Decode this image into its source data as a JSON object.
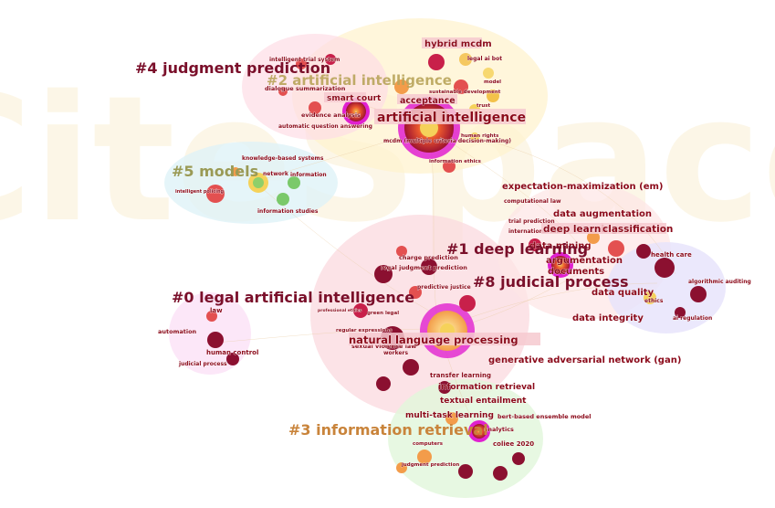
{
  "watermark": "CiteSpace",
  "colors": {
    "c0": "#fbdde3",
    "c1": "#fbe3e6",
    "c2": "#fff5d6",
    "c3": "#e4f7e0",
    "c4": "#fde3ea",
    "c5": "#e0f4f7",
    "c7": "#e8e3fb",
    "c8": "#fbe3f7",
    "label_dark": "#7a0f2a",
    "label_olive": "#9a9a55",
    "label_orange": "#c9843b",
    "node_dark": "#8b1030",
    "node_red": "#e35050",
    "node_orange": "#f39c4a",
    "node_yellow": "#f5d25a",
    "node_green": "#7ac96a",
    "ring": "#e020d0"
  },
  "clusters": [
    {
      "id": "0",
      "label": "#0 legal artificial intelligence"
    },
    {
      "id": "1",
      "label": "#1 deep learning"
    },
    {
      "id": "2",
      "label": "#2 artificial intelligence"
    },
    {
      "id": "3",
      "label": "#3 information retrieval"
    },
    {
      "id": "4",
      "label": "#4 judgment prediction"
    },
    {
      "id": "5",
      "label": "#5 models"
    },
    {
      "id": "7",
      "label": "#7 algorithmic auditing"
    },
    {
      "id": "8",
      "label": "#8 judicial process"
    }
  ],
  "keywords": [
    {
      "text": "hybrid mcdm"
    },
    {
      "text": "legal ai bot"
    },
    {
      "text": "intelligent trial system"
    },
    {
      "text": "dialogue summarization"
    },
    {
      "text": "smart court"
    },
    {
      "text": "acceptance"
    },
    {
      "text": "artificial intelligence"
    },
    {
      "text": "evidence analysis"
    },
    {
      "text": "automatic question answering"
    },
    {
      "text": "mcdm (multiple criteria decision-making)"
    },
    {
      "text": "information ethics"
    },
    {
      "text": "knowledge-based systems"
    },
    {
      "text": "network"
    },
    {
      "text": "information"
    },
    {
      "text": "intelligent policing"
    },
    {
      "text": "information studies"
    },
    {
      "text": "expectation-maximization (em)"
    },
    {
      "text": "computational law"
    },
    {
      "text": "data augmentation"
    },
    {
      "text": "trial prediction"
    },
    {
      "text": "international law"
    },
    {
      "text": "deep learning"
    },
    {
      "text": "classification"
    },
    {
      "text": "health care"
    },
    {
      "text": "argumentation"
    },
    {
      "text": "documents"
    },
    {
      "text": "data mining"
    },
    {
      "text": "algorithmic auditing"
    },
    {
      "text": "data quality"
    },
    {
      "text": "ethics"
    },
    {
      "text": "ai regulation"
    },
    {
      "text": "data integrity"
    },
    {
      "text": "charge prediction"
    },
    {
      "text": "legal judgment prediction"
    },
    {
      "text": "predictive justice"
    },
    {
      "text": "law"
    },
    {
      "text": "automation"
    },
    {
      "text": "human control"
    },
    {
      "text": "judicial process"
    },
    {
      "text": "natural language processing"
    },
    {
      "text": "sexual violence law"
    },
    {
      "text": "generative adversarial network (gan)"
    },
    {
      "text": "transfer learning"
    },
    {
      "text": "information retrieval"
    },
    {
      "text": "textual entailment"
    },
    {
      "text": "multi-task learning"
    },
    {
      "text": "bert-based ensemble model"
    },
    {
      "text": "analytics"
    },
    {
      "text": "coliee 2020"
    },
    {
      "text": "computers"
    },
    {
      "text": "judgment prediction"
    },
    {
      "text": "trust"
    },
    {
      "text": "sustainable development"
    },
    {
      "text": "human rights"
    },
    {
      "text": "model"
    },
    {
      "text": "regular expressions"
    },
    {
      "text": "workers"
    },
    {
      "text": "green legal"
    },
    {
      "text": "professional ethics"
    }
  ]
}
